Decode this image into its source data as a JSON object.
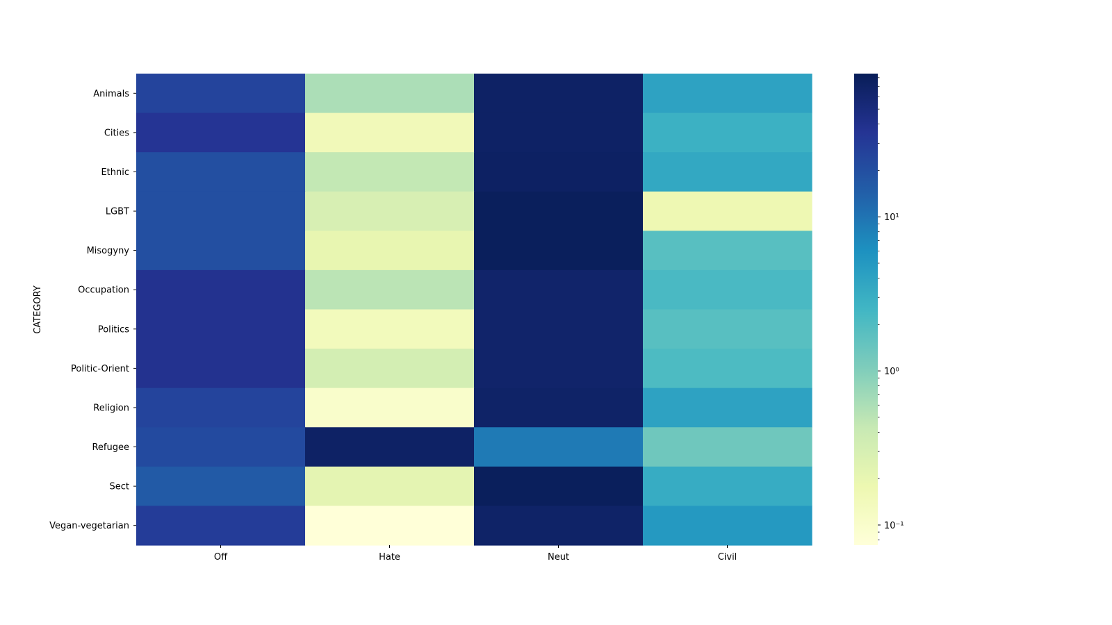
{
  "chart_data": {
    "type": "heatmap",
    "title": "",
    "xlabel": "",
    "ylabel": "CATEGORY",
    "columns": [
      "Off",
      "Hate",
      "Neut",
      "Civil"
    ],
    "rows": [
      "Animals",
      "Cities",
      "Ethnic",
      "LGBT",
      "Misogyny",
      "Occupation",
      "Politics",
      "Politic-Orient",
      "Religion",
      "Refugee",
      "Sect",
      "Vegan-vegetarian"
    ],
    "values": [
      [
        25,
        0.6,
        70,
        4.0
      ],
      [
        35,
        0.15,
        70,
        2.8
      ],
      [
        20,
        0.45,
        72,
        3.5
      ],
      [
        20,
        0.3,
        80,
        0.17
      ],
      [
        20,
        0.2,
        80,
        1.8
      ],
      [
        38,
        0.5,
        65,
        2.2
      ],
      [
        38,
        0.14,
        65,
        1.8
      ],
      [
        38,
        0.33,
        65,
        2.1
      ],
      [
        25,
        0.1,
        68,
        4.0
      ],
      [
        22,
        70,
        9,
        1.3
      ],
      [
        16,
        0.22,
        80,
        3.2
      ],
      [
        30,
        0.075,
        68,
        5.0
      ]
    ],
    "colormap": "YlGnBu",
    "color_scale": "log",
    "colorbar_range": [
      0.074,
      85
    ],
    "colorbar_ticks": [
      {
        "value": 0.1,
        "label": "10⁻¹"
      },
      {
        "value": 1,
        "label": "10⁰"
      },
      {
        "value": 10,
        "label": "10¹"
      }
    ],
    "grid": false
  }
}
